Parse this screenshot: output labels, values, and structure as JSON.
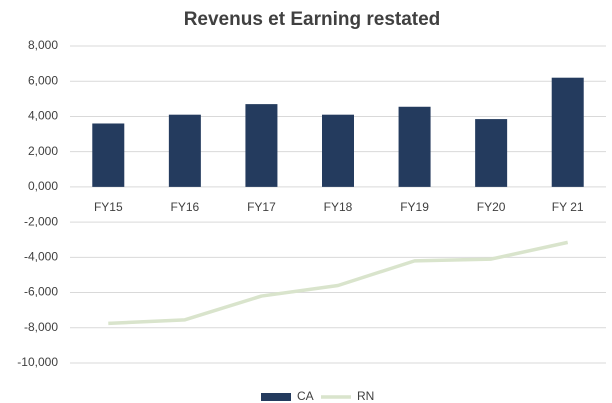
{
  "chart_data": {
    "type": "bar",
    "title": "Revenus et Earning restated",
    "categories": [
      "FY15",
      "FY16",
      "FY17",
      "FY18",
      "FY19",
      "FY20",
      "FY 21"
    ],
    "series": [
      {
        "name": "CA",
        "type": "bar",
        "color": "#243b5e",
        "values": [
          3600,
          4100,
          4700,
          4100,
          4550,
          3850,
          6200
        ]
      },
      {
        "name": "RN",
        "type": "line",
        "color": "#d9e4cc",
        "values": [
          -7750,
          -7550,
          -6200,
          -5600,
          -4200,
          -4100,
          -3150
        ]
      }
    ],
    "ylim": [
      -10000,
      8000
    ],
    "yticks": [
      {
        "value": 8000,
        "label": "8,000"
      },
      {
        "value": 6000,
        "label": "6,000"
      },
      {
        "value": 4000,
        "label": "4,000"
      },
      {
        "value": 2000,
        "label": "2,000"
      },
      {
        "value": 0,
        "label": "0,000"
      },
      {
        "value": -2000,
        "label": "-2,000"
      },
      {
        "value": -4000,
        "label": "-4,000"
      },
      {
        "value": -6000,
        "label": "-6,000"
      },
      {
        "value": -8000,
        "label": "-8,000"
      },
      {
        "value": -10000,
        "label": "-10,000"
      }
    ],
    "grid": true,
    "legend": "bottom"
  }
}
